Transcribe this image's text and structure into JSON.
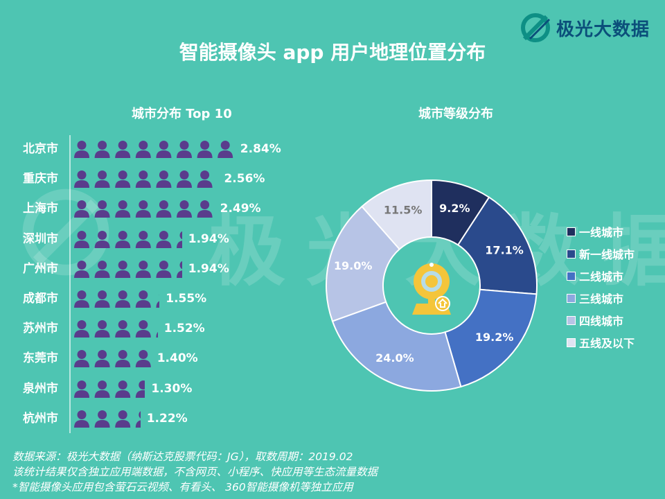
{
  "brand": {
    "name": "极光大数据",
    "watermark": "极光大数据"
  },
  "title": "智能摄像头 app 用户地理位置分布",
  "chart_data": [
    {
      "type": "bar",
      "title": "城市分布 Top 10",
      "categories": [
        "北京市",
        "重庆市",
        "上海市",
        "深圳市",
        "广州市",
        "成都市",
        "苏州市",
        "东莞市",
        "泉州市",
        "杭州市"
      ],
      "values": [
        2.84,
        2.56,
        2.49,
        1.94,
        1.94,
        1.55,
        1.52,
        1.4,
        1.3,
        1.22
      ],
      "labels": [
        "2.84%",
        "2.56%",
        "2.49%",
        "1.94%",
        "1.94%",
        "1.55%",
        "1.52%",
        "1.40%",
        "1.30%",
        "1.22%"
      ],
      "unit": "%",
      "color": "#5a3c8c"
    },
    {
      "type": "pie",
      "title": "城市等级分布",
      "categories": [
        "一线城市",
        "新一线城市",
        "二线城市",
        "三线城市",
        "四线城市",
        "五线及以下"
      ],
      "values": [
        9.2,
        17.1,
        19.2,
        24.0,
        19.0,
        11.5
      ],
      "labels": [
        "9.2%",
        "17.1%",
        "19.2%",
        "24.0%",
        "19.0%",
        "11.5%"
      ],
      "colors": [
        "#1f2f5e",
        "#2a4a8c",
        "#4471c4",
        "#8ca8df",
        "#b7c4e6",
        "#dfe3f2"
      ],
      "label_colors": [
        "#ffffff",
        "#ffffff",
        "#ffffff",
        "#ffffff",
        "#ffffff",
        "#777777"
      ],
      "legend": "right",
      "center_icon": "webcam-icon"
    }
  ],
  "footer": [
    "数据来源：极光大数据（纳斯达克股票代码：JG），取数周期：2019.02",
    "该统计结果仅含独立应用端数据，不含网页、小程序、快应用等生态流量数据",
    "*智能摄像头应用包含萤石云视频、有看头、 360智能摄像机等独立应用"
  ]
}
